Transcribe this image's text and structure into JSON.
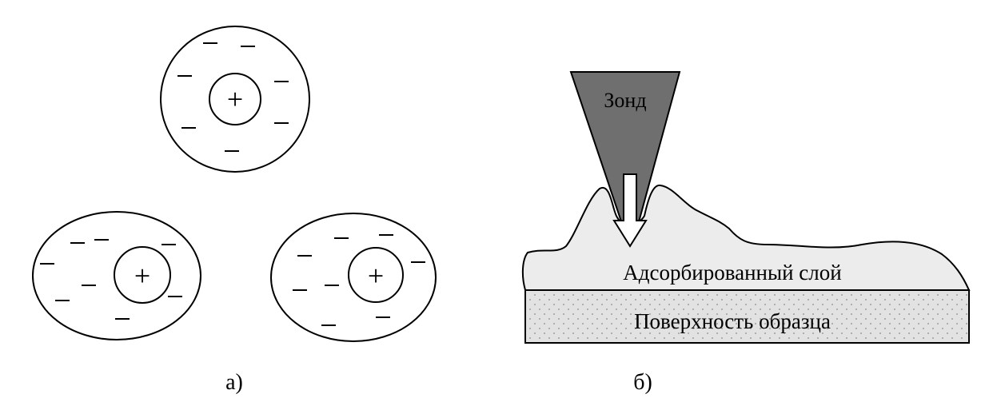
{
  "panel_a": {
    "caption": "а)",
    "plus_sign": "+",
    "minus_sign": "–"
  },
  "panel_b": {
    "caption": "б)",
    "probe_label": "Зонд",
    "adsorbed_layer_label": "Адсорбированный слой",
    "surface_label": "Поверхность образца"
  },
  "colors": {
    "probe_fill": "#6f6f6f",
    "layer_fill": "#ececec",
    "surface_fill": "#e2e2e2",
    "dots": "#8a8a8a",
    "stroke": "#000000"
  }
}
